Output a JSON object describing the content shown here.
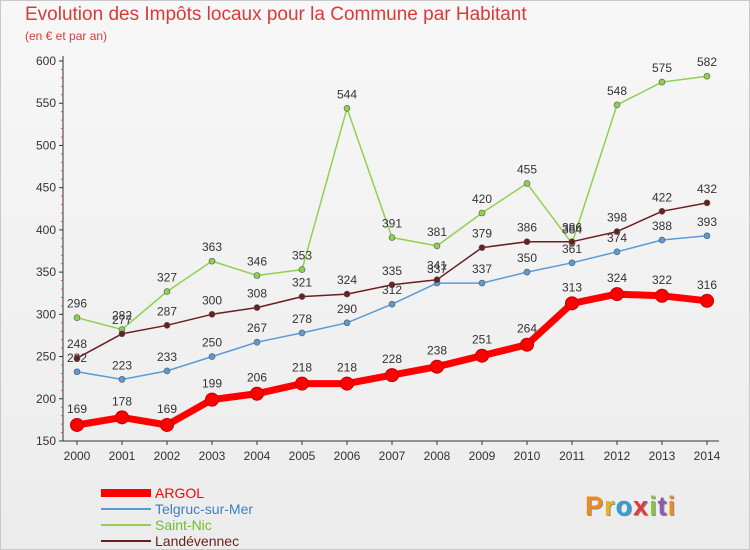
{
  "header": {
    "title": "Evolution des Impôts locaux pour la Commune par Habitant",
    "subtitle": "(en € et par an)"
  },
  "branding": {
    "logo_text": "Proxiti",
    "logo_colors": [
      "#f08a1c",
      "#e8b31e",
      "#2e9fd9",
      "#e23b3b",
      "#8cc63f",
      "#8b59b0",
      "#f08a1c"
    ]
  },
  "chart_data": {
    "type": "line",
    "title": "Evolution des Impôts locaux pour la Commune par Habitant",
    "subtitle": "(en € et par an)",
    "xlabel": "",
    "ylabel": "",
    "ylim": [
      150,
      600
    ],
    "yticks": [
      150,
      200,
      250,
      300,
      350,
      400,
      450,
      500,
      550,
      600
    ],
    "grid": false,
    "legend_position": "bottom-left",
    "x": [
      "2000",
      "2001",
      "2002",
      "2003",
      "2004",
      "2005",
      "2006",
      "2007",
      "2008",
      "2009",
      "2010",
      "2011",
      "2012",
      "2013",
      "2014"
    ],
    "series": [
      {
        "name": "ARGOL",
        "color": "#ff0000",
        "values": [
          169,
          178,
          169,
          199,
          206,
          218,
          218,
          228,
          238,
          251,
          264,
          313,
          324,
          322,
          316
        ]
      },
      {
        "name": "Telgruc-sur-Mer",
        "color": "#5b9bd5",
        "values": [
          232,
          223,
          233,
          250,
          267,
          278,
          290,
          312,
          337,
          337,
          350,
          361,
          374,
          388,
          393
        ]
      },
      {
        "name": "Saint-Nic",
        "color": "#8fd14f",
        "values": [
          296,
          282,
          327,
          363,
          346,
          353,
          544,
          391,
          381,
          420,
          455,
          384,
          548,
          575,
          582
        ]
      },
      {
        "name": "Landévennec",
        "color": "#6b1f1f",
        "values": [
          248,
          277,
          287,
          300,
          308,
          321,
          324,
          335,
          341,
          379,
          386,
          386,
          398,
          422,
          432
        ]
      }
    ]
  }
}
